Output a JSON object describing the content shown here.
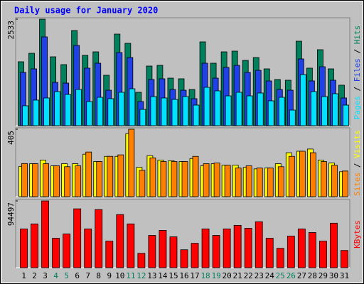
{
  "title": "Daily usage for January 2020",
  "legend_separator": "/",
  "chart_data": [
    {
      "type": "bar",
      "ylim": [
        0,
        2533
      ],
      "yticks": [
        2533
      ],
      "series": [
        {
          "name": "Pages",
          "color": "#00e0ff",
          "values": [
            473,
            608,
            659,
            811,
            743,
            861,
            574,
            675,
            642,
            794,
            878,
            388,
            692,
            659,
            625,
            692,
            490,
            912,
            828,
            709,
            794,
            709,
            777,
            591,
            675,
            371,
            1216,
            811,
            692,
            760,
            490
          ]
        },
        {
          "name": "Files",
          "color": "#2040e8",
          "values": [
            1267,
            1351,
            2111,
            1030,
            1013,
            1908,
            1368,
            1486,
            844,
            1739,
            1621,
            574,
            1098,
            1115,
            861,
            844,
            642,
            1486,
            1131,
            1385,
            1435,
            1267,
            1317,
            1064,
            861,
            844,
            1587,
            1064,
            1402,
            1081,
            659
          ]
        },
        {
          "name": "Hits",
          "color": "#00805c",
          "values": [
            1520,
            1722,
            2533,
            1638,
            1452,
            2263,
            1672,
            1756,
            1199,
            2178,
            1959,
            794,
            1418,
            1435,
            1131,
            1115,
            861,
            1993,
            1486,
            1756,
            1773,
            1553,
            1621,
            1351,
            1098,
            1081,
            2009,
            1368,
            1807,
            1351,
            963
          ]
        }
      ]
    },
    {
      "type": "bar",
      "ylim": [
        0,
        405
      ],
      "yticks": [
        405
      ],
      "series": [
        {
          "name": "Sites",
          "color": "#ff8000",
          "values": [
            199,
            198,
            198,
            185,
            180,
            185,
            268,
            211,
            242,
            251,
            405,
            158,
            233,
            211,
            211,
            211,
            242,
            198,
            202,
            189,
            172,
            185,
            172,
            172,
            180,
            242,
            273,
            264,
            211,
            189,
            154
          ]
        },
        {
          "name": "Visits",
          "color": "#ffff00",
          "values": [
            182,
            198,
            220,
            185,
            198,
            198,
            255,
            211,
            242,
            242,
            378,
            176,
            246,
            220,
            216,
            211,
            229,
            185,
            198,
            189,
            189,
            176,
            167,
            172,
            198,
            264,
            273,
            286,
            220,
            202,
            150
          ]
        }
      ]
    },
    {
      "type": "bar",
      "ylim": [
        0,
        94497
      ],
      "yticks": [
        94497
      ],
      "categories": [
        "1",
        "2",
        "3",
        "4",
        "5",
        "6",
        "7",
        "8",
        "9",
        "10",
        "11",
        "12",
        "13",
        "14",
        "15",
        "16",
        "17",
        "18",
        "19",
        "20",
        "21",
        "22",
        "23",
        "24",
        "25",
        "26",
        "27",
        "28",
        "29",
        "30",
        "31"
      ],
      "category_colors": [
        "#000000",
        "#000000",
        "#000000",
        "#00805c",
        "#00805c",
        "#000000",
        "#000000",
        "#000000",
        "#000000",
        "#000000",
        "#00805c",
        "#00805c",
        "#000000",
        "#000000",
        "#000000",
        "#000000",
        "#000000",
        "#00805c",
        "#00805c",
        "#000000",
        "#000000",
        "#000000",
        "#000000",
        "#000000",
        "#00805c",
        "#00805c",
        "#000000",
        "#000000",
        "#000000",
        "#000000",
        "#000000"
      ],
      "series": [
        {
          "name": "KBytes",
          "color": "#ff0000",
          "values": [
            54870,
            61980,
            94497,
            41660,
            47750,
            83320,
            54870,
            82300,
            37590,
            75190,
            61980,
            20320,
            45720,
            52840,
            43690,
            25400,
            34550,
            54870,
            45720,
            54870,
            59950,
            55880,
            65030,
            41660,
            27430,
            44710,
            54870,
            49790,
            37590,
            63000,
            24390
          ]
        }
      ]
    }
  ]
}
